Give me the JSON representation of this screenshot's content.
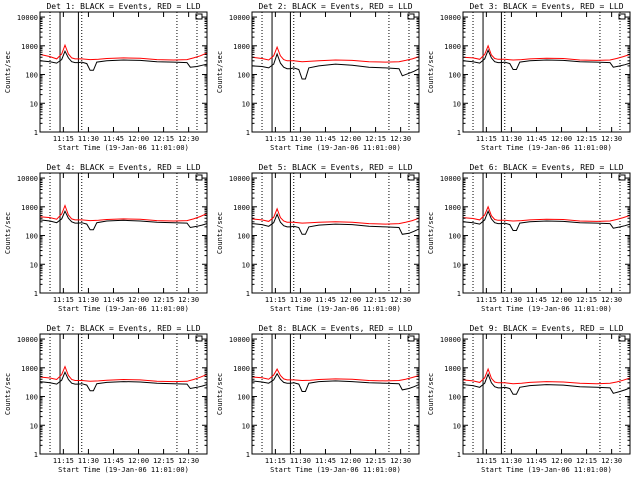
{
  "figure": {
    "xlabel": "Start Time (19-Jan-06 11:01:00)",
    "ylabel": "Counts/sec"
  },
  "colors": {
    "events": "#000000",
    "lld": "#ff0000",
    "axes": "#000000"
  },
  "chart_data": {
    "type": "line",
    "x_range_minutes_from_start": [
      0,
      100
    ],
    "xticks": [
      {
        "t": 14,
        "label": "11:15"
      },
      {
        "t": 29,
        "label": "11:30"
      },
      {
        "t": 44,
        "label": "11:45"
      },
      {
        "t": 59,
        "label": "12:00"
      },
      {
        "t": 74,
        "label": "12:15"
      },
      {
        "t": 89,
        "label": "12:30"
      }
    ],
    "ylim": [
      1,
      15000
    ],
    "yscale": "log",
    "yticks": [
      1,
      10,
      100,
      1000,
      10000
    ],
    "yticklabels": [
      "1",
      "10",
      "100",
      "1000",
      "10000"
    ],
    "markers": {
      "dotted_lines_t": [
        6,
        25,
        82,
        94
      ],
      "solid_lines_t": [
        12,
        23
      ]
    },
    "series_names": [
      "BLACK = Events",
      "RED = LLD"
    ],
    "panels": [
      {
        "title": "Det 1: BLACK = Events, RED = LLD",
        "series": [
          {
            "name": "Events",
            "t": [
              0,
              6,
              10,
              13,
              15,
              17,
              19,
              21,
              23,
              25,
              28,
              30,
              32,
              34,
              40,
              50,
              60,
              70,
              80,
              88,
              90,
              94,
              97,
              100
            ],
            "values": [
              300,
              280,
              250,
              330,
              650,
              380,
              280,
              260,
              260,
              270,
              240,
              140,
              140,
              270,
              300,
              320,
              310,
              280,
              270,
              260,
              180,
              190,
              210,
              230
            ]
          },
          {
            "name": "LLD",
            "t": [
              0,
              6,
              10,
              13,
              15,
              17,
              19,
              21,
              25,
              30,
              35,
              40,
              50,
              60,
              70,
              80,
              88,
              92,
              96,
              100
            ],
            "values": [
              500,
              420,
              350,
              520,
              1050,
              520,
              380,
              350,
              350,
              330,
              340,
              360,
              380,
              370,
              330,
              320,
              330,
              380,
              450,
              560
            ]
          }
        ]
      },
      {
        "title": "Det 2: BLACK = Events, RED = LLD",
        "series": [
          {
            "name": "Events",
            "t": [
              0,
              6,
              10,
              13,
              15,
              17,
              19,
              21,
              23,
              25,
              28,
              30,
              32,
              34,
              40,
              50,
              60,
              70,
              80,
              88,
              90,
              94,
              97,
              100
            ],
            "values": [
              200,
              190,
              170,
              230,
              520,
              250,
              180,
              160,
              160,
              170,
              150,
              70,
              70,
              170,
              200,
              230,
              210,
              180,
              170,
              160,
              90,
              110,
              130,
              160
            ]
          },
          {
            "name": "LLD",
            "t": [
              0,
              6,
              10,
              13,
              15,
              17,
              19,
              21,
              25,
              30,
              35,
              40,
              50,
              60,
              70,
              80,
              88,
              92,
              96,
              100
            ],
            "values": [
              400,
              360,
              320,
              450,
              900,
              450,
              330,
              300,
              300,
              280,
              290,
              300,
              320,
              310,
              280,
              270,
              280,
              310,
              350,
              420
            ]
          }
        ]
      },
      {
        "title": "Det 3: BLACK = Events, RED = LLD",
        "series": [
          {
            "name": "Events",
            "t": [
              0,
              6,
              10,
              13,
              15,
              17,
              19,
              21,
              23,
              25,
              28,
              30,
              32,
              34,
              40,
              50,
              60,
              70,
              80,
              88,
              90,
              94,
              97,
              100
            ],
            "values": [
              300,
              280,
              250,
              350,
              700,
              380,
              280,
              260,
              260,
              270,
              240,
              150,
              150,
              270,
              300,
              320,
              310,
              280,
              270,
              260,
              180,
              200,
              220,
              250
            ]
          },
          {
            "name": "LLD",
            "t": [
              0,
              6,
              10,
              13,
              15,
              17,
              19,
              21,
              25,
              30,
              35,
              40,
              50,
              60,
              70,
              80,
              88,
              92,
              96,
              100
            ],
            "values": [
              400,
              380,
              340,
              500,
              1000,
              480,
              360,
              340,
              340,
              320,
              330,
              350,
              370,
              360,
              320,
              310,
              320,
              360,
              420,
              500
            ]
          }
        ]
      },
      {
        "title": "Det 4: BLACK = Events, RED = LLD",
        "series": [
          {
            "name": "Events",
            "t": [
              0,
              6,
              10,
              13,
              15,
              17,
              19,
              21,
              23,
              25,
              28,
              30,
              32,
              34,
              40,
              50,
              60,
              70,
              80,
              88,
              90,
              94,
              97,
              100
            ],
            "values": [
              350,
              320,
              280,
              380,
              700,
              400,
              300,
              270,
              270,
              280,
              250,
              160,
              160,
              280,
              320,
              340,
              320,
              290,
              280,
              270,
              190,
              210,
              230,
              260
            ]
          },
          {
            "name": "LLD",
            "t": [
              0,
              6,
              10,
              13,
              15,
              17,
              19,
              21,
              25,
              30,
              35,
              40,
              50,
              60,
              70,
              80,
              88,
              92,
              96,
              100
            ],
            "values": [
              450,
              420,
              370,
              560,
              1100,
              520,
              380,
              350,
              350,
              330,
              340,
              360,
              380,
              370,
              330,
              320,
              330,
              380,
              460,
              580
            ]
          }
        ]
      },
      {
        "title": "Det 5: BLACK = Events, RED = LLD",
        "series": [
          {
            "name": "Events",
            "t": [
              0,
              6,
              10,
              13,
              15,
              17,
              19,
              21,
              23,
              25,
              28,
              30,
              32,
              34,
              40,
              50,
              60,
              70,
              80,
              88,
              90,
              94,
              97,
              100
            ],
            "values": [
              260,
              240,
              210,
              280,
              550,
              290,
              220,
              200,
              200,
              210,
              190,
              110,
              110,
              200,
              230,
              250,
              240,
              210,
              200,
              190,
              110,
              120,
              140,
              170
            ]
          },
          {
            "name": "LLD",
            "t": [
              0,
              6,
              10,
              13,
              15,
              17,
              19,
              21,
              25,
              30,
              35,
              40,
              50,
              60,
              70,
              80,
              88,
              92,
              96,
              100
            ],
            "values": [
              380,
              350,
              310,
              430,
              850,
              420,
              320,
              290,
              290,
              270,
              280,
              290,
              300,
              290,
              260,
              250,
              260,
              290,
              330,
              400
            ]
          }
        ]
      },
      {
        "title": "Det 6: BLACK = Events, RED = LLD",
        "series": [
          {
            "name": "Events",
            "t": [
              0,
              6,
              10,
              13,
              15,
              17,
              19,
              21,
              23,
              25,
              28,
              30,
              32,
              34,
              40,
              50,
              60,
              70,
              80,
              88,
              90,
              94,
              97,
              100
            ],
            "values": [
              300,
              280,
              250,
              350,
              700,
              380,
              280,
              260,
              260,
              270,
              240,
              150,
              150,
              270,
              300,
              320,
              310,
              280,
              270,
              260,
              180,
              200,
              220,
              250
            ]
          },
          {
            "name": "LLD",
            "t": [
              0,
              6,
              10,
              13,
              15,
              17,
              19,
              21,
              25,
              30,
              35,
              40,
              50,
              60,
              70,
              80,
              88,
              92,
              96,
              100
            ],
            "values": [
              420,
              390,
              350,
              520,
              1000,
              490,
              360,
              340,
              340,
              320,
              330,
              350,
              370,
              360,
              320,
              310,
              320,
              360,
              420,
              500
            ]
          }
        ]
      },
      {
        "title": "Det 7: BLACK = Events, RED = LLD",
        "series": [
          {
            "name": "Events",
            "t": [
              0,
              6,
              10,
              13,
              15,
              17,
              19,
              21,
              23,
              25,
              28,
              30,
              32,
              34,
              40,
              50,
              60,
              70,
              80,
              88,
              90,
              94,
              97,
              100
            ],
            "values": [
              330,
              300,
              270,
              370,
              700,
              390,
              290,
              270,
              270,
              280,
              250,
              160,
              160,
              280,
              310,
              330,
              320,
              290,
              280,
              270,
              190,
              210,
              230,
              260
            ]
          },
          {
            "name": "LLD",
            "t": [
              0,
              6,
              10,
              13,
              15,
              17,
              19,
              21,
              25,
              30,
              35,
              40,
              50,
              60,
              70,
              80,
              88,
              92,
              96,
              100
            ],
            "values": [
              480,
              440,
              390,
              580,
              1100,
              540,
              390,
              360,
              360,
              340,
              350,
              370,
              390,
              380,
              340,
              330,
              340,
              390,
              470,
              590
            ]
          }
        ]
      },
      {
        "title": "Det 8: BLACK = Events, RED = LLD",
        "series": [
          {
            "name": "Events",
            "t": [
              0,
              6,
              10,
              13,
              15,
              17,
              19,
              21,
              23,
              25,
              28,
              30,
              32,
              34,
              40,
              50,
              60,
              70,
              80,
              88,
              90,
              94,
              97,
              100
            ],
            "values": [
              350,
              320,
              290,
              380,
              620,
              400,
              310,
              290,
              290,
              300,
              270,
              150,
              150,
              290,
              330,
              350,
              330,
              300,
              290,
              280,
              170,
              190,
              220,
              260
            ]
          },
          {
            "name": "LLD",
            "t": [
              0,
              6,
              10,
              13,
              15,
              17,
              19,
              21,
              25,
              30,
              35,
              40,
              50,
              60,
              70,
              80,
              88,
              92,
              96,
              100
            ],
            "values": [
              480,
              450,
              400,
              560,
              900,
              540,
              410,
              380,
              380,
              360,
              370,
              390,
              410,
              400,
              360,
              350,
              360,
              400,
              460,
              540
            ]
          }
        ]
      },
      {
        "title": "Det 9: BLACK = Events, RED = LLD",
        "series": [
          {
            "name": "Events",
            "t": [
              0,
              6,
              10,
              13,
              15,
              17,
              19,
              21,
              23,
              25,
              28,
              30,
              32,
              34,
              40,
              50,
              60,
              70,
              80,
              88,
              90,
              94,
              97,
              100
            ],
            "values": [
              260,
              240,
              210,
              290,
              600,
              300,
              220,
              200,
              200,
              210,
              190,
              120,
              120,
              210,
              240,
              260,
              250,
              220,
              210,
              200,
              130,
              150,
              170,
              200
            ]
          },
          {
            "name": "LLD",
            "t": [
              0,
              6,
              10,
              13,
              15,
              17,
              19,
              21,
              25,
              30,
              35,
              40,
              50,
              60,
              70,
              80,
              88,
              92,
              96,
              100
            ],
            "values": [
              380,
              350,
              310,
              450,
              900,
              430,
              320,
              300,
              300,
              280,
              290,
              310,
              330,
              320,
              290,
              280,
              290,
              320,
              370,
              440
            ]
          }
        ]
      }
    ]
  }
}
